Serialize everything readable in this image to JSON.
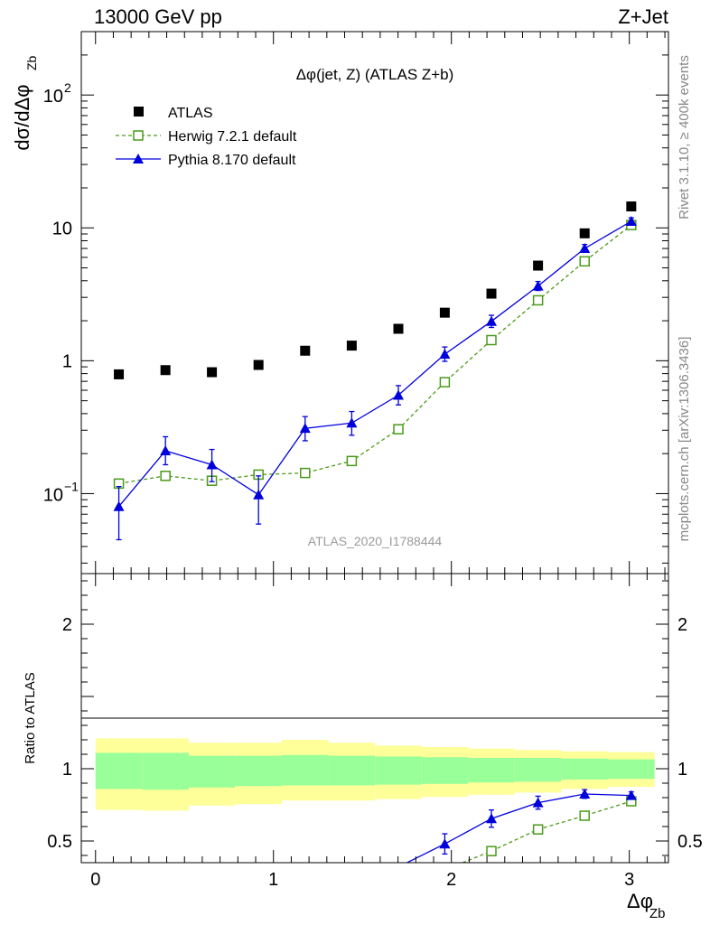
{
  "header": {
    "left": "13000 GeV pp",
    "right": "Z+Jet"
  },
  "side_labels": {
    "rivet": "Rivet 3.1.10, ≥ 400k events",
    "mcplots": "mcplots.cern.ch [arXiv:1306.3436]"
  },
  "chart_data": [
    {
      "type": "scatter",
      "panel": "main",
      "title": "Δφ(jet, Z) (ATLAS Z+b)",
      "ylabel": "dσ/dΔφ",
      "ylabel_subscript": "Zb",
      "yscale": "log",
      "ylim": [
        0.025,
        300
      ],
      "xlim": [
        -0.08,
        3.22
      ],
      "yticks": [
        {
          "value": 0.1,
          "base": "10",
          "exp": "−1"
        },
        {
          "value": 1,
          "base": "1",
          "exp": ""
        },
        {
          "value": 10,
          "base": "10",
          "exp": ""
        },
        {
          "value": 100,
          "base": "10",
          "exp": "2"
        }
      ],
      "analysis_label": "ATLAS_2020_I1788444",
      "series": [
        {
          "name": "ATLAS",
          "color": "#000000",
          "marker": "square-filled",
          "x": [
            0.131,
            0.393,
            0.654,
            0.916,
            1.178,
            1.44,
            1.702,
            1.963,
            2.225,
            2.487,
            2.749,
            3.011
          ],
          "y": [
            0.79,
            0.85,
            0.82,
            0.93,
            1.19,
            1.3,
            1.74,
            2.3,
            3.2,
            5.2,
            9.1,
            14.5
          ]
        },
        {
          "name": "Herwig 7.2.1 default",
          "color": "#4a9a1a",
          "marker": "square-open",
          "line": "dashed",
          "x": [
            0.131,
            0.393,
            0.654,
            0.916,
            1.178,
            1.44,
            1.702,
            1.963,
            2.225,
            2.487,
            2.749,
            3.011
          ],
          "y": [
            0.119,
            0.136,
            0.125,
            0.139,
            0.143,
            0.176,
            0.305,
            0.69,
            1.43,
            2.85,
            5.6,
            10.5
          ],
          "err_up": [
            0.008,
            0.01,
            0.009,
            0.009,
            0.009,
            0.01,
            0.013,
            0.03,
            0.05,
            0.08,
            0.15,
            0.2
          ],
          "err_down": [
            0.008,
            0.01,
            0.009,
            0.009,
            0.009,
            0.01,
            0.013,
            0.03,
            0.05,
            0.08,
            0.15,
            0.2
          ]
        },
        {
          "name": "Pythia 8.170 default",
          "color": "#0000dd",
          "marker": "triangle-filled",
          "line": "solid",
          "x": [
            0.131,
            0.393,
            0.654,
            0.916,
            1.178,
            1.44,
            1.702,
            1.963,
            2.225,
            2.487,
            2.749,
            3.011
          ],
          "y": [
            0.08,
            0.21,
            0.165,
            0.098,
            0.31,
            0.34,
            0.55,
            1.12,
            1.98,
            3.65,
            7.0,
            11.2
          ],
          "err_up": [
            0.033,
            0.058,
            0.05,
            0.038,
            0.07,
            0.075,
            0.1,
            0.15,
            0.22,
            0.3,
            0.5,
            0.7
          ],
          "err_down": [
            0.035,
            0.045,
            0.042,
            0.039,
            0.06,
            0.065,
            0.085,
            0.13,
            0.2,
            0.27,
            0.45,
            0.6
          ]
        }
      ]
    },
    {
      "type": "line",
      "panel": "ratio",
      "ylabel": "Ratio to ATLAS",
      "xlabel": "Δφ",
      "xlabel_subscript": "Zb",
      "ylim": [
        0.35,
        2.35
      ],
      "xlim": [
        -0.08,
        3.22
      ],
      "xticks": [
        0,
        1,
        2,
        3
      ],
      "yticks": [
        0.5,
        1,
        2
      ],
      "bands": {
        "bin_edges": [
          0,
          0.262,
          0.524,
          0.785,
          1.047,
          1.309,
          1.571,
          1.833,
          2.094,
          2.356,
          2.618,
          2.88,
          3.142
        ],
        "outer_lo": [
          0.715,
          0.71,
          0.745,
          0.755,
          0.78,
          0.78,
          0.79,
          0.805,
          0.82,
          0.835,
          0.86,
          0.875
        ],
        "outer_hi": [
          1.21,
          1.21,
          1.18,
          1.18,
          1.2,
          1.18,
          1.16,
          1.15,
          1.14,
          1.13,
          1.12,
          1.115
        ],
        "inner_lo": [
          0.86,
          0.855,
          0.87,
          0.88,
          0.885,
          0.885,
          0.89,
          0.895,
          0.905,
          0.91,
          0.925,
          0.93
        ],
        "inner_hi": [
          1.11,
          1.11,
          1.09,
          1.09,
          1.095,
          1.09,
          1.085,
          1.08,
          1.075,
          1.075,
          1.07,
          1.065
        ],
        "outer_color": "#ffff99",
        "inner_color": "#99ff99"
      },
      "series": [
        {
          "name": "Herwig 7.2.1 default",
          "color": "#4a9a1a",
          "marker": "square-open",
          "line": "dashed",
          "x": [
            1.963,
            2.225,
            2.487,
            2.749,
            3.011
          ],
          "y": [
            0.3,
            0.43,
            0.58,
            0.675,
            0.775
          ],
          "err": [
            0.0,
            0.01,
            0.012,
            0.012,
            0.012
          ]
        },
        {
          "name": "Pythia 8.170 default",
          "color": "#0000dd",
          "marker": "triangle-filled",
          "line": "solid",
          "x": [
            1.702,
            1.963,
            2.225,
            2.487,
            2.749,
            3.011
          ],
          "y": [
            0.32,
            0.48,
            0.655,
            0.765,
            0.825,
            0.815
          ],
          "err": [
            0.0,
            0.07,
            0.06,
            0.045,
            0.03,
            0.025
          ]
        }
      ]
    }
  ]
}
